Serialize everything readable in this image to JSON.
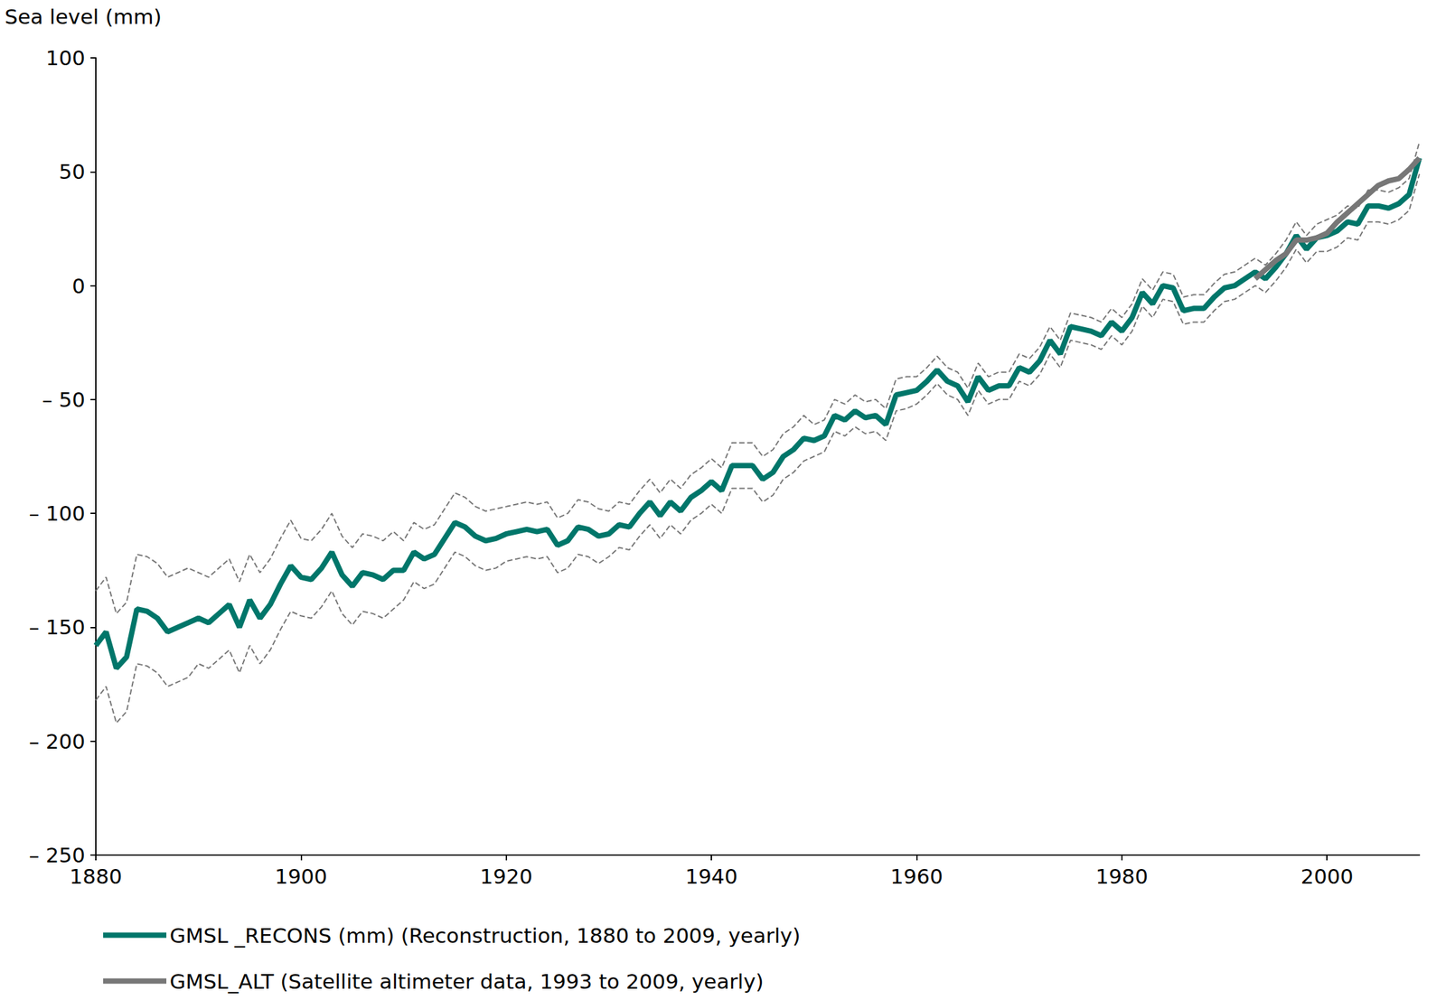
{
  "chart_data": {
    "type": "line",
    "y_label": "Sea level (mm)",
    "xlim": [
      1880,
      2009
    ],
    "xticks": [
      1880,
      1900,
      1920,
      1940,
      1960,
      1980,
      2000
    ],
    "ylim": [
      -250,
      100
    ],
    "yticks": [
      {
        "value": -250,
        "label": "– 250"
      },
      {
        "value": -200,
        "label": "– 200"
      },
      {
        "value": -150,
        "label": "– 150"
      },
      {
        "value": -100,
        "label": "– 100"
      },
      {
        "value": -50,
        "label": "– 50"
      },
      0,
      50,
      100
    ],
    "grid": false,
    "legend": "bottom",
    "series": [
      {
        "name": "GMSL _RECONS (mm) (Reconstruction, 1880 to 2009, yearly)",
        "color": "#00766a",
        "line_style": "solid",
        "x": [
          1880,
          1881,
          1882,
          1883,
          1884,
          1885,
          1886,
          1887,
          1888,
          1889,
          1890,
          1891,
          1892,
          1893,
          1894,
          1895,
          1896,
          1897,
          1898,
          1899,
          1900,
          1901,
          1902,
          1903,
          1904,
          1905,
          1906,
          1907,
          1908,
          1909,
          1910,
          1911,
          1912,
          1913,
          1914,
          1915,
          1916,
          1917,
          1918,
          1919,
          1920,
          1921,
          1922,
          1923,
          1924,
          1925,
          1926,
          1927,
          1928,
          1929,
          1930,
          1931,
          1932,
          1933,
          1934,
          1935,
          1936,
          1937,
          1938,
          1939,
          1940,
          1941,
          1942,
          1943,
          1944,
          1945,
          1946,
          1947,
          1948,
          1949,
          1950,
          1951,
          1952,
          1953,
          1954,
          1955,
          1956,
          1957,
          1958,
          1959,
          1960,
          1961,
          1962,
          1963,
          1964,
          1965,
          1966,
          1967,
          1968,
          1969,
          1970,
          1971,
          1972,
          1973,
          1974,
          1975,
          1976,
          1977,
          1978,
          1979,
          1980,
          1981,
          1982,
          1983,
          1984,
          1985,
          1986,
          1987,
          1988,
          1989,
          1990,
          1991,
          1992,
          1993,
          1994,
          1995,
          1996,
          1997,
          1998,
          1999,
          2000,
          2001,
          2002,
          2003,
          2004,
          2005,
          2006,
          2007,
          2008,
          2009
        ],
        "values": [
          -158,
          -152,
          -168,
          -163,
          -142,
          -143,
          -146,
          -152,
          -150,
          -148,
          -146,
          -148,
          -144,
          -140,
          -150,
          -138,
          -146,
          -140,
          -131,
          -123,
          -128,
          -129,
          -124,
          -117,
          -127,
          -132,
          -126,
          -127,
          -129,
          -125,
          -125,
          -117,
          -120,
          -118,
          -111,
          -104,
          -106,
          -110,
          -112,
          -111,
          -109,
          -108,
          -107,
          -108,
          -107,
          -114,
          -112,
          -106,
          -107,
          -110,
          -109,
          -105,
          -106,
          -100,
          -95,
          -101,
          -95,
          -99,
          -93,
          -90,
          -86,
          -90,
          -79,
          -79,
          -79,
          -85,
          -82,
          -75,
          -72,
          -67,
          -68,
          -66,
          -57,
          -59,
          -55,
          -58,
          -57,
          -61,
          -48,
          -47,
          -46,
          -42,
          -37,
          -42,
          -44,
          -51,
          -40,
          -46,
          -44,
          -44,
          -36,
          -38,
          -33,
          -24,
          -30,
          -18,
          -19,
          -20,
          -22,
          -16,
          -20,
          -14,
          -3,
          -8,
          0,
          -1,
          -11,
          -10,
          -10,
          -5,
          -1,
          0,
          3,
          6,
          3,
          8,
          14,
          22,
          16,
          21,
          22,
          24,
          28,
          27,
          35,
          35,
          34,
          36,
          40,
          56
        ],
        "upper": [
          -134,
          -128,
          -144,
          -139,
          -118,
          -119,
          -122,
          -128,
          -126,
          -124,
          -126,
          -128,
          -124,
          -120,
          -130,
          -118,
          -126,
          -120,
          -111,
          -103,
          -111,
          -112,
          -107,
          -100,
          -110,
          -115,
          -109,
          -110,
          -112,
          -108,
          -112,
          -104,
          -107,
          -105,
          -98,
          -91,
          -93,
          -97,
          -99,
          -98,
          -97,
          -96,
          -95,
          -96,
          -95,
          -102,
          -100,
          -94,
          -95,
          -98,
          -99,
          -95,
          -96,
          -90,
          -85,
          -91,
          -85,
          -89,
          -83,
          -80,
          -76,
          -80,
          -69,
          -69,
          -69,
          -75,
          -72,
          -65,
          -62,
          -57,
          -61,
          -59,
          -50,
          -52,
          -48,
          -51,
          -50,
          -54,
          -41,
          -40,
          -40,
          -36,
          -31,
          -36,
          -38,
          -45,
          -34,
          -40,
          -38,
          -38,
          -30,
          -32,
          -27,
          -18,
          -24,
          -12,
          -13,
          -14,
          -16,
          -10,
          -14,
          -8,
          3,
          -2,
          6,
          5,
          -5,
          -4,
          -4,
          1,
          5,
          6,
          9,
          12,
          9,
          14,
          20,
          28,
          22,
          27,
          29,
          31,
          35,
          34,
          42,
          42,
          41,
          43,
          47,
          63
        ],
        "lower": [
          -182,
          -176,
          -192,
          -187,
          -166,
          -167,
          -170,
          -176,
          -174,
          -172,
          -166,
          -168,
          -164,
          -160,
          -170,
          -158,
          -166,
          -160,
          -151,
          -143,
          -145,
          -146,
          -141,
          -134,
          -144,
          -149,
          -143,
          -144,
          -146,
          -142,
          -138,
          -130,
          -133,
          -131,
          -124,
          -117,
          -119,
          -123,
          -125,
          -124,
          -121,
          -120,
          -119,
          -120,
          -119,
          -126,
          -124,
          -118,
          -119,
          -122,
          -119,
          -115,
          -116,
          -110,
          -105,
          -111,
          -105,
          -109,
          -103,
          -100,
          -96,
          -100,
          -89,
          -89,
          -89,
          -95,
          -92,
          -85,
          -82,
          -77,
          -75,
          -73,
          -64,
          -66,
          -62,
          -65,
          -64,
          -68,
          -55,
          -54,
          -52,
          -48,
          -43,
          -48,
          -50,
          -57,
          -46,
          -52,
          -50,
          -50,
          -42,
          -44,
          -39,
          -30,
          -36,
          -24,
          -25,
          -26,
          -28,
          -22,
          -26,
          -20,
          -9,
          -14,
          -6,
          -7,
          -17,
          -16,
          -16,
          -11,
          -7,
          -6,
          -3,
          0,
          -3,
          2,
          8,
          16,
          10,
          15,
          15,
          17,
          21,
          20,
          28,
          28,
          27,
          29,
          33,
          49
        ]
      },
      {
        "name": "GMSL_ALT (Satellite altimeter data, 1993 to 2009, yearly)",
        "color": "#777777",
        "line_style": "solid",
        "x": [
          1993,
          1994,
          1995,
          1996,
          1997,
          1998,
          1999,
          2000,
          2001,
          2002,
          2003,
          2004,
          2005,
          2006,
          2007,
          2008,
          2009
        ],
        "values": [
          3,
          7,
          11,
          14,
          20,
          20,
          21,
          23,
          28,
          32,
          36,
          40,
          44,
          46,
          47,
          51,
          56
        ]
      }
    ]
  }
}
